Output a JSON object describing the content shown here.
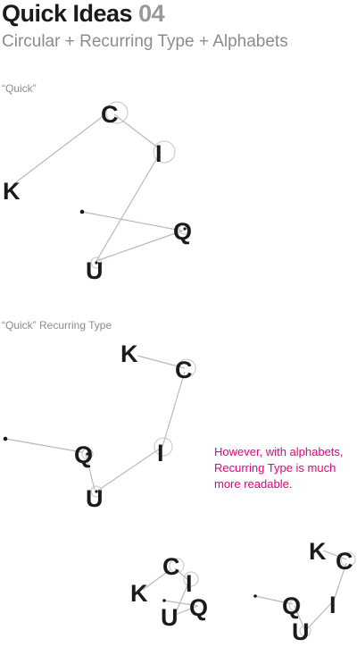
{
  "header": {
    "title": "Quick Ideas",
    "number": "04",
    "subtitle": "Circular + Recurring Type + Alphabets"
  },
  "sections": [
    {
      "label": "“Quick”"
    },
    {
      "label": "“Quick”  Recurring Type"
    }
  ],
  "annotation": {
    "lines": [
      "However, with alphabets,",
      "Recurring Type is much",
      "more readable."
    ]
  },
  "letters": {
    "q": "Q",
    "u": "U",
    "i": "I",
    "c": "C",
    "k": "K"
  },
  "colors": {
    "accent": "#e6007e",
    "ink": "#1a1a1a",
    "muted": "#8c8c8c",
    "line": "#b9b9b9"
  }
}
